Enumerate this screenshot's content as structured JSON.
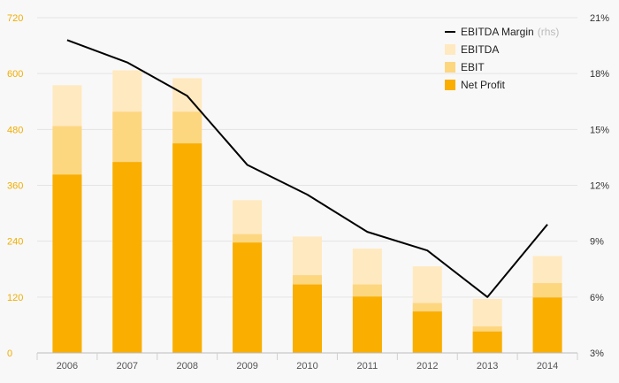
{
  "chart_data": {
    "type": "bar",
    "stacked": true,
    "categories": [
      "2006",
      "2007",
      "2008",
      "2009",
      "2010",
      "2011",
      "2012",
      "2013",
      "2014"
    ],
    "series": [
      {
        "name": "Net Profit",
        "values": [
          383,
          410,
          450,
          237,
          147,
          121,
          89,
          46,
          119
        ],
        "color": "#f9ae00"
      },
      {
        "name": "EBIT",
        "values": [
          487,
          518,
          518,
          255,
          167,
          147,
          107,
          57,
          150
        ],
        "color": "#fdd680"
      },
      {
        "name": "EBITDA",
        "values": [
          575,
          607,
          590,
          328,
          250,
          224,
          186,
          116,
          208
        ],
        "color": "#ffe9c0"
      }
    ],
    "line_series": {
      "name": "EBITDA Margin",
      "axis_note": "(rhs)",
      "values": [
        19.8,
        18.6,
        16.8,
        13.1,
        11.5,
        9.5,
        8.5,
        6.0,
        9.9
      ],
      "color": "#000000"
    },
    "left_axis": {
      "ticks": [
        "0",
        "120",
        "240",
        "360",
        "480",
        "600",
        "720"
      ],
      "ylim": [
        0,
        720
      ],
      "color": "#f0ad00"
    },
    "right_axis": {
      "ticks": [
        "3%",
        "6%",
        "9%",
        "12%",
        "15%",
        "18%",
        "21%"
      ],
      "ylim": [
        3,
        21
      ]
    },
    "grid": true,
    "legend_position": "top-right",
    "legend_order": [
      "EBITDA Margin",
      "EBITDA",
      "EBIT",
      "Net Profit"
    ]
  }
}
